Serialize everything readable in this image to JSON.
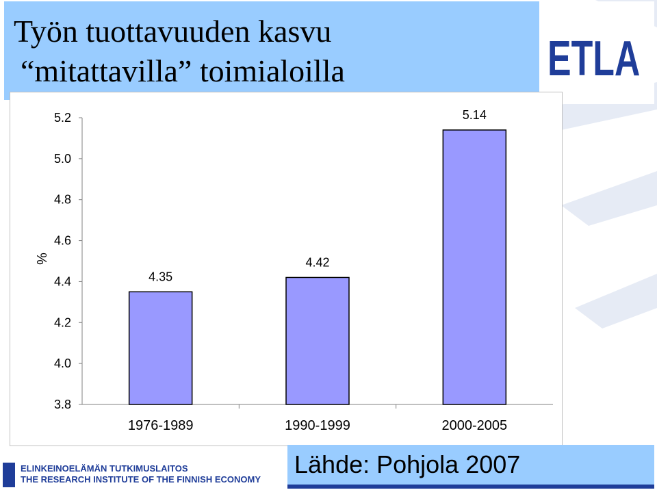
{
  "title": {
    "line1": "Työn tuottavuuden kasvu",
    "line2": "“mitattavilla” toimialoilla"
  },
  "logo": {
    "text": "ETLA"
  },
  "footer": {
    "line1": "ELINKEINOELÄMÄN TUTKIMUSLAITOS",
    "line2": "THE RESEARCH INSTITUTE OF THE FINNISH ECONOMY"
  },
  "source": "Lähde: Pohjola 2007",
  "colors": {
    "bar_fill": "#9999ff",
    "bar_stroke": "#000000",
    "title_bg": "#99ccff",
    "brand": "#1f3d99"
  },
  "chart_data": {
    "type": "bar",
    "title": "",
    "xlabel": "",
    "ylabel": "%",
    "categories": [
      "1976-1989",
      "1990-1999",
      "2000-2005"
    ],
    "values": [
      4.35,
      4.42,
      5.14
    ],
    "data_labels": [
      "4.35",
      "4.42",
      "5.14"
    ],
    "ylim": [
      3.8,
      5.2
    ],
    "yticks": [
      "3.8",
      "4.0",
      "4.2",
      "4.4",
      "4.6",
      "4.8",
      "5.0",
      "5.2"
    ],
    "grid": false,
    "legend": "none"
  }
}
